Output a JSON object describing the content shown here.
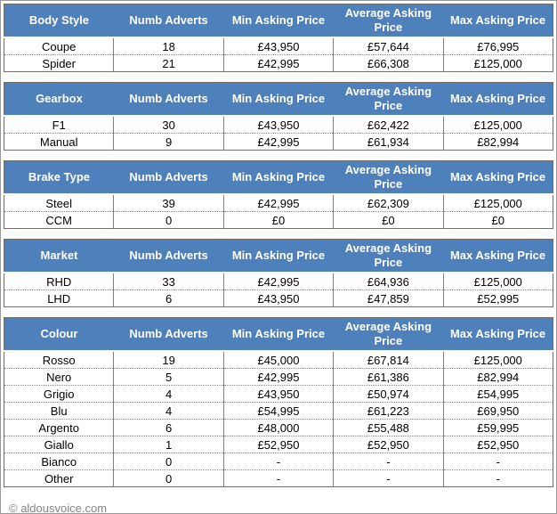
{
  "page": {
    "footer": "© aldousvoice.com"
  },
  "colors": {
    "header_bg": "#4e80bc",
    "header_text": "#ffffff",
    "table_border": "#6e6e6e",
    "row_divider_dotted": "#8c8c8c",
    "column_divider": "#7f7f7f",
    "footer_text": "#848484"
  },
  "chart_data": [
    {
      "type": "table",
      "title": "Body Style",
      "columns": [
        "Body Style",
        "Numb Adverts",
        "Min Asking Price",
        "Average Asking Price",
        "Max Asking Price"
      ],
      "rows": [
        [
          "Coupe",
          "18",
          "£43,950",
          "£57,644",
          "£76,995"
        ],
        [
          "Spider",
          "21",
          "£42,995",
          "£66,308",
          "£125,000"
        ]
      ]
    },
    {
      "type": "table",
      "title": "Gearbox",
      "columns": [
        "Gearbox",
        "Numb Adverts",
        "Min Asking Price",
        "Average Asking Price",
        "Max Asking Price"
      ],
      "rows": [
        [
          "F1",
          "30",
          "£43,950",
          "£62,422",
          "£125,000"
        ],
        [
          "Manual",
          "9",
          "£42,995",
          "£61,934",
          "£82,994"
        ]
      ]
    },
    {
      "type": "table",
      "title": "Brake Type",
      "columns": [
        "Brake Type",
        "Numb Adverts",
        "Min Asking Price",
        "Average Asking Price",
        "Max Asking Price"
      ],
      "rows": [
        [
          "Steel",
          "39",
          "£42,995",
          "£62,309",
          "£125,000"
        ],
        [
          "CCM",
          "0",
          "£0",
          "£0",
          "£0"
        ]
      ]
    },
    {
      "type": "table",
      "title": "Market",
      "columns": [
        "Market",
        "Numb Adverts",
        "Min Asking Price",
        "Average Asking Price",
        "Max Asking Price"
      ],
      "rows": [
        [
          "RHD",
          "33",
          "£42,995",
          "£64,936",
          "£125,000"
        ],
        [
          "LHD",
          "6",
          "£43,950",
          "£47,859",
          "£52,995"
        ]
      ]
    },
    {
      "type": "table",
      "title": "Colour",
      "columns": [
        "Colour",
        "Numb Adverts",
        "Min Asking Price",
        "Average Asking Price",
        "Max Asking Price"
      ],
      "rows": [
        [
          "Rosso",
          "19",
          "£45,000",
          "£67,814",
          "£125,000"
        ],
        [
          "Nero",
          "5",
          "£42,995",
          "£61,386",
          "£82,994"
        ],
        [
          "Grigio",
          "4",
          "£43,950",
          "£50,974",
          "£54,995"
        ],
        [
          "Blu",
          "4",
          "£54,995",
          "£61,223",
          "£69,950"
        ],
        [
          "Argento",
          "6",
          "£48,000",
          "£55,488",
          "£59,995"
        ],
        [
          "Giallo",
          "1",
          "£52,950",
          "£52,950",
          "£52,950"
        ],
        [
          "Bianco",
          "0",
          "-",
          "-",
          "-"
        ],
        [
          "Other",
          "0",
          "-",
          "-",
          "-"
        ]
      ]
    }
  ]
}
